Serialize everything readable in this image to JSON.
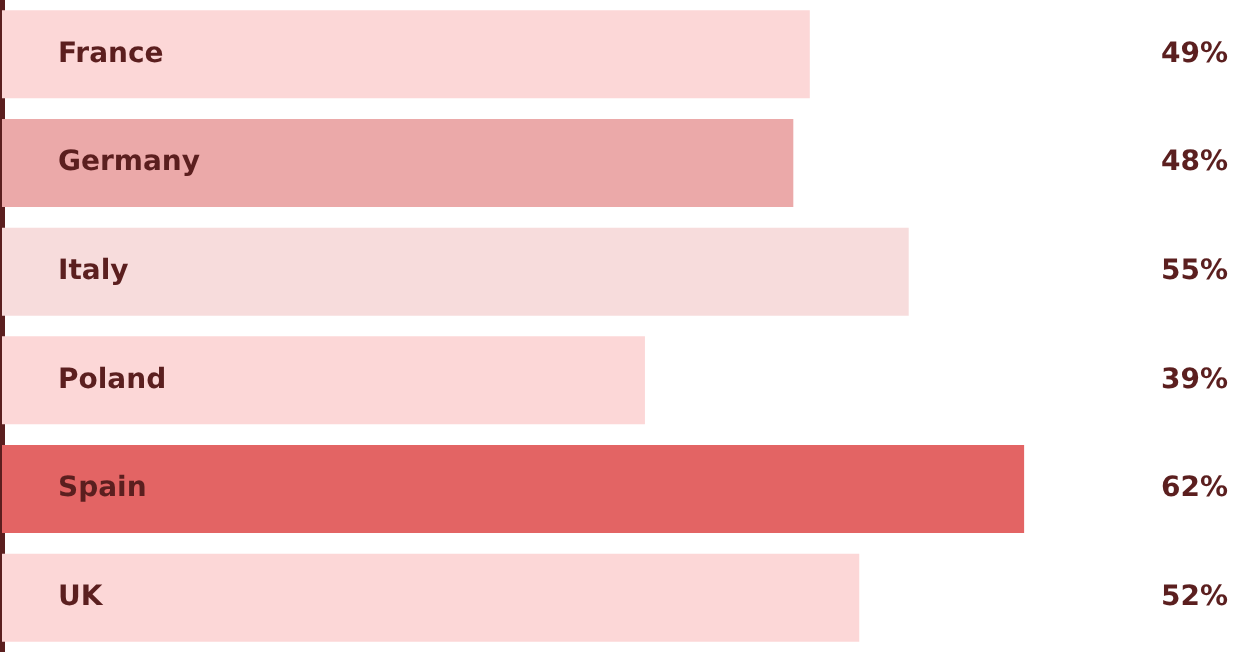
{
  "chart_data": {
    "type": "bar",
    "orientation": "horizontal",
    "categories": [
      "France",
      "Germany",
      "Italy",
      "Poland",
      "Spain",
      "UK"
    ],
    "values": [
      49,
      48,
      55,
      39,
      62,
      52
    ],
    "colors": [
      "#fcd7d7",
      "#eba9a9",
      "#f7dcdc",
      "#fcd7d7",
      "#e36464",
      "#fcd7d7"
    ],
    "value_labels": [
      "49%",
      "48%",
      "55%",
      "39%",
      "62%",
      "52%"
    ],
    "legend": false
  }
}
